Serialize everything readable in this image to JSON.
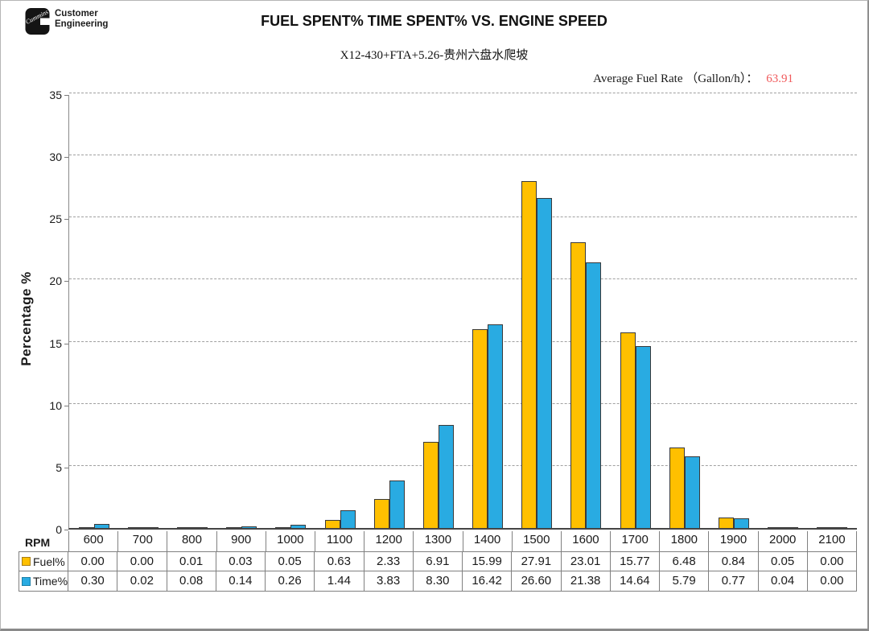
{
  "header": {
    "logo": {
      "brand": "Cummins",
      "line1": "Customer",
      "line2": "Engineering"
    },
    "title": "FUEL SPENT% TIME SPENT% VS. ENGINE SPEED",
    "subtitle": "X12-430+FTA+5.26-贵州六盘水爬坡",
    "average_fuel_rate": {
      "label": "Average Fuel Rate （Gallon/h）：",
      "value": "63.91",
      "value_color": "#f0595b"
    }
  },
  "chart_data": {
    "type": "bar",
    "title": "FUEL SPENT% TIME SPENT% VS. ENGINE SPEED",
    "subtitle": "X12-430+FTA+5.26-贵州六盘水爬坡",
    "xlabel": "RPM",
    "ylabel": "Percentage %",
    "ylim": [
      0,
      35
    ],
    "ytick_step": 5,
    "grid": "horizontal-dashed",
    "legend_position": "table-row-headers",
    "categories": [
      600,
      700,
      800,
      900,
      1000,
      1100,
      1200,
      1300,
      1400,
      1500,
      1600,
      1700,
      1800,
      1900,
      2000,
      2100
    ],
    "series": [
      {
        "name": "Fuel%",
        "color": "#FFC000",
        "bar_border": "#3a3a3a",
        "key_border": "#a87d14",
        "values": [
          0.0,
          0.0,
          0.01,
          0.03,
          0.05,
          0.63,
          2.33,
          6.91,
          15.99,
          27.91,
          23.01,
          15.77,
          6.48,
          0.84,
          0.05,
          0.0
        ]
      },
      {
        "name": "Time%",
        "color": "#29ABE2",
        "bar_border": "#3a3a3a",
        "key_border": "#1b7fa8",
        "values": [
          0.3,
          0.02,
          0.08,
          0.14,
          0.26,
          1.44,
          3.83,
          8.3,
          16.42,
          26.6,
          21.38,
          14.64,
          5.79,
          0.77,
          0.04,
          0.0
        ]
      }
    ]
  }
}
